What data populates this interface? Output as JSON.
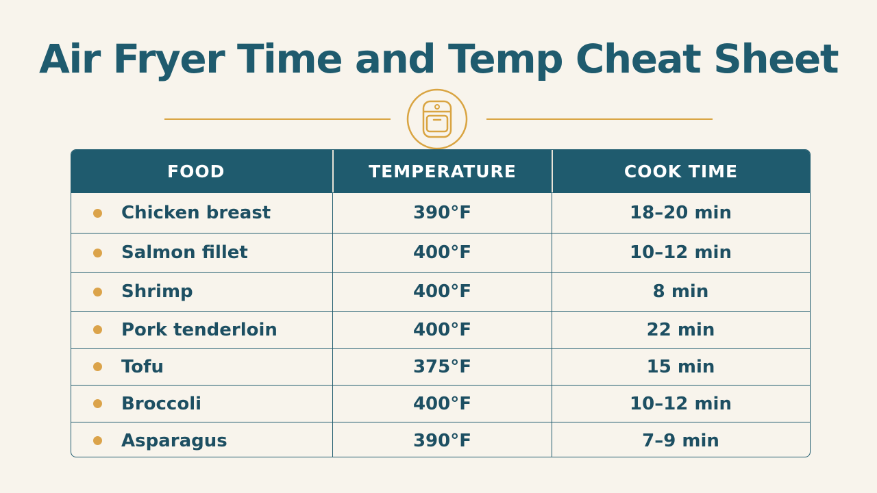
{
  "title": "Air Fryer Time and Temp Cheat Sheet",
  "emblem_icon": "air-fryer-icon",
  "colors": {
    "background": "#f8f4ec",
    "primary": "#1f5b6e",
    "accent": "#d9a441"
  },
  "table": {
    "headers": {
      "food": "FOOD",
      "temperature": "TEMPERATURE",
      "cook_time": "COOK TIME"
    },
    "rows": [
      {
        "food": "Chicken breast",
        "temperature": "390°F",
        "cook_time": "18–20 min"
      },
      {
        "food": "Salmon fillet",
        "temperature": "400°F",
        "cook_time": "10–12 min"
      },
      {
        "food": "Shrimp",
        "temperature": "400°F",
        "cook_time": "8 min"
      },
      {
        "food": "Pork tenderloin",
        "temperature": "400°F",
        "cook_time": "22 min"
      },
      {
        "food": "Tofu",
        "temperature": "375°F",
        "cook_time": "15 min"
      },
      {
        "food": "Broccoli",
        "temperature": "400°F",
        "cook_time": "10–12 min"
      },
      {
        "food": "Asparagus",
        "temperature": "390°F",
        "cook_time": "7–9 min"
      }
    ]
  }
}
